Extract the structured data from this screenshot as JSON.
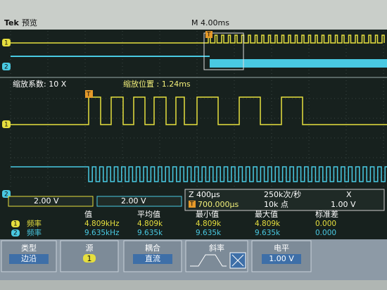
{
  "header": {
    "brand": "Tek",
    "mode": "预览",
    "timebase": "M 4.00ms"
  },
  "channels": [
    {
      "marker": "1"
    },
    {
      "marker": "2"
    }
  ],
  "trigger_marker": "T",
  "zoom": {
    "factor": "缩放系数: 10 X",
    "position": "缩放位置 : 1.24ms"
  },
  "status": {
    "ch1_scale": "2.00 V",
    "ch2_scale": "2.00 V",
    "zoom_scale": "Z 400µs",
    "sample_rate": "250k次/秒",
    "trigger_slope": "X",
    "trigger_position": "700.000µs",
    "record_length": "10k 点",
    "trigger_level": "1.00 V"
  },
  "measurements": {
    "columns": [
      "值",
      "平均值",
      "最小值",
      "最大值",
      "标准差"
    ],
    "rows": [
      [
        "频率",
        "4.809kHz",
        "4.809k",
        "4.809k",
        "4.809k",
        "0.000"
      ],
      [
        "频率",
        "9.635kHz",
        "9.635k",
        "9.635k",
        "9.635k",
        "0.000"
      ]
    ]
  },
  "menu": [
    {
      "title": "类型",
      "value": "边沿"
    },
    {
      "title": "源",
      "value": "1"
    },
    {
      "title": "耦合",
      "value": "直流"
    },
    {
      "title": "斜率"
    },
    {
      "title": "电平",
      "value": "1.00 V"
    }
  ]
}
